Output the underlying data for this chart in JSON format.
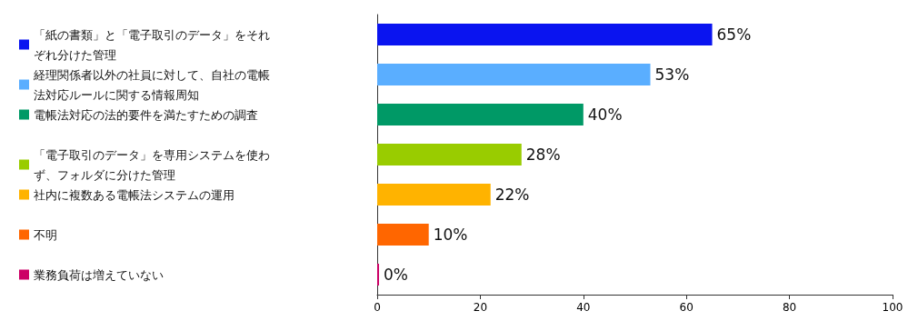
{
  "chart_data": {
    "type": "bar",
    "orientation": "horizontal",
    "stacked": true,
    "categories": [
      null,
      null,
      null,
      null,
      null,
      null,
      null
    ],
    "series": [
      {
        "name": "「紙の書類」と「電子取引のデータ」をそれぞれ分けた管理",
        "color": "#0a14f0",
        "values": [
          65,
          null,
          null,
          null,
          null,
          null,
          null
        ],
        "value_labels": [
          "65%",
          null,
          null,
          null,
          null,
          null,
          null
        ]
      },
      {
        "name": "経理関係者以外の社員に対して、自社の電帳法対応ルールに関する情報周知",
        "color": "#5aaeff",
        "values": [
          null,
          53,
          null,
          null,
          null,
          null,
          null
        ],
        "value_labels": [
          null,
          "53%",
          null,
          null,
          null,
          null,
          null
        ]
      },
      {
        "name": "電帳法対応の法的要件を満たすための調査",
        "color": "#009966",
        "values": [
          null,
          null,
          40,
          null,
          null,
          null,
          null
        ],
        "value_labels": [
          null,
          null,
          "40%",
          null,
          null,
          null,
          null
        ]
      },
      {
        "name": "「電子取引のデータ」を専用システムを使わず、フォルダに分けた管理",
        "color": "#99cc00",
        "values": [
          null,
          null,
          null,
          28,
          null,
          null,
          null
        ],
        "value_labels": [
          null,
          null,
          null,
          "28%",
          null,
          null,
          null
        ]
      },
      {
        "name": "社内に複数ある電帳法システムの運用",
        "color": "#ffb300",
        "values": [
          null,
          null,
          null,
          null,
          22,
          null,
          null
        ],
        "value_labels": [
          null,
          null,
          null,
          null,
          "22%",
          null,
          null
        ]
      },
      {
        "name": "不明",
        "color": "#ff6600",
        "values": [
          null,
          null,
          null,
          null,
          null,
          10,
          null
        ],
        "value_labels": [
          null,
          null,
          null,
          null,
          null,
          "10%",
          null
        ]
      },
      {
        "name": "業務負荷は増えていない",
        "color": "#cc0066",
        "values": [
          null,
          null,
          null,
          null,
          null,
          null,
          0
        ],
        "value_labels": [
          null,
          null,
          null,
          null,
          null,
          null,
          "0%"
        ]
      }
    ],
    "xlim": [
      0,
      100
    ],
    "xticks": [
      0,
      20,
      40,
      60,
      80,
      100
    ],
    "grid": false,
    "legend": "left"
  }
}
